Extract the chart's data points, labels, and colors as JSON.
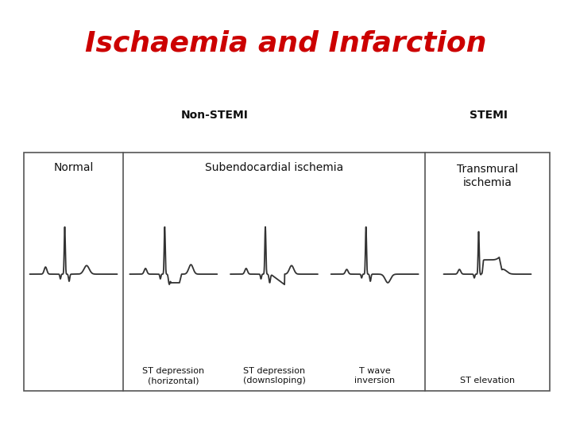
{
  "title": "Ischaemia and Infarction",
  "title_color": "#cc0000",
  "title_bg_color": "#1e3f6e",
  "subtitle_left": "Non-STEMI",
  "subtitle_right": "STEMI",
  "section1_label": "Normal",
  "section2_label": "Subendocardial ischemia",
  "section3_label": "Transmural\nischemia",
  "sub_labels": [
    "ST depression\n(horizontal)",
    "ST depression\n(downsloping)",
    "T wave\ninversion",
    "ST elevation"
  ],
  "bg_color": "#ffffff",
  "box_bg": "#ffffff",
  "line_color": "#333333",
  "fig_bg": "#ffffff"
}
